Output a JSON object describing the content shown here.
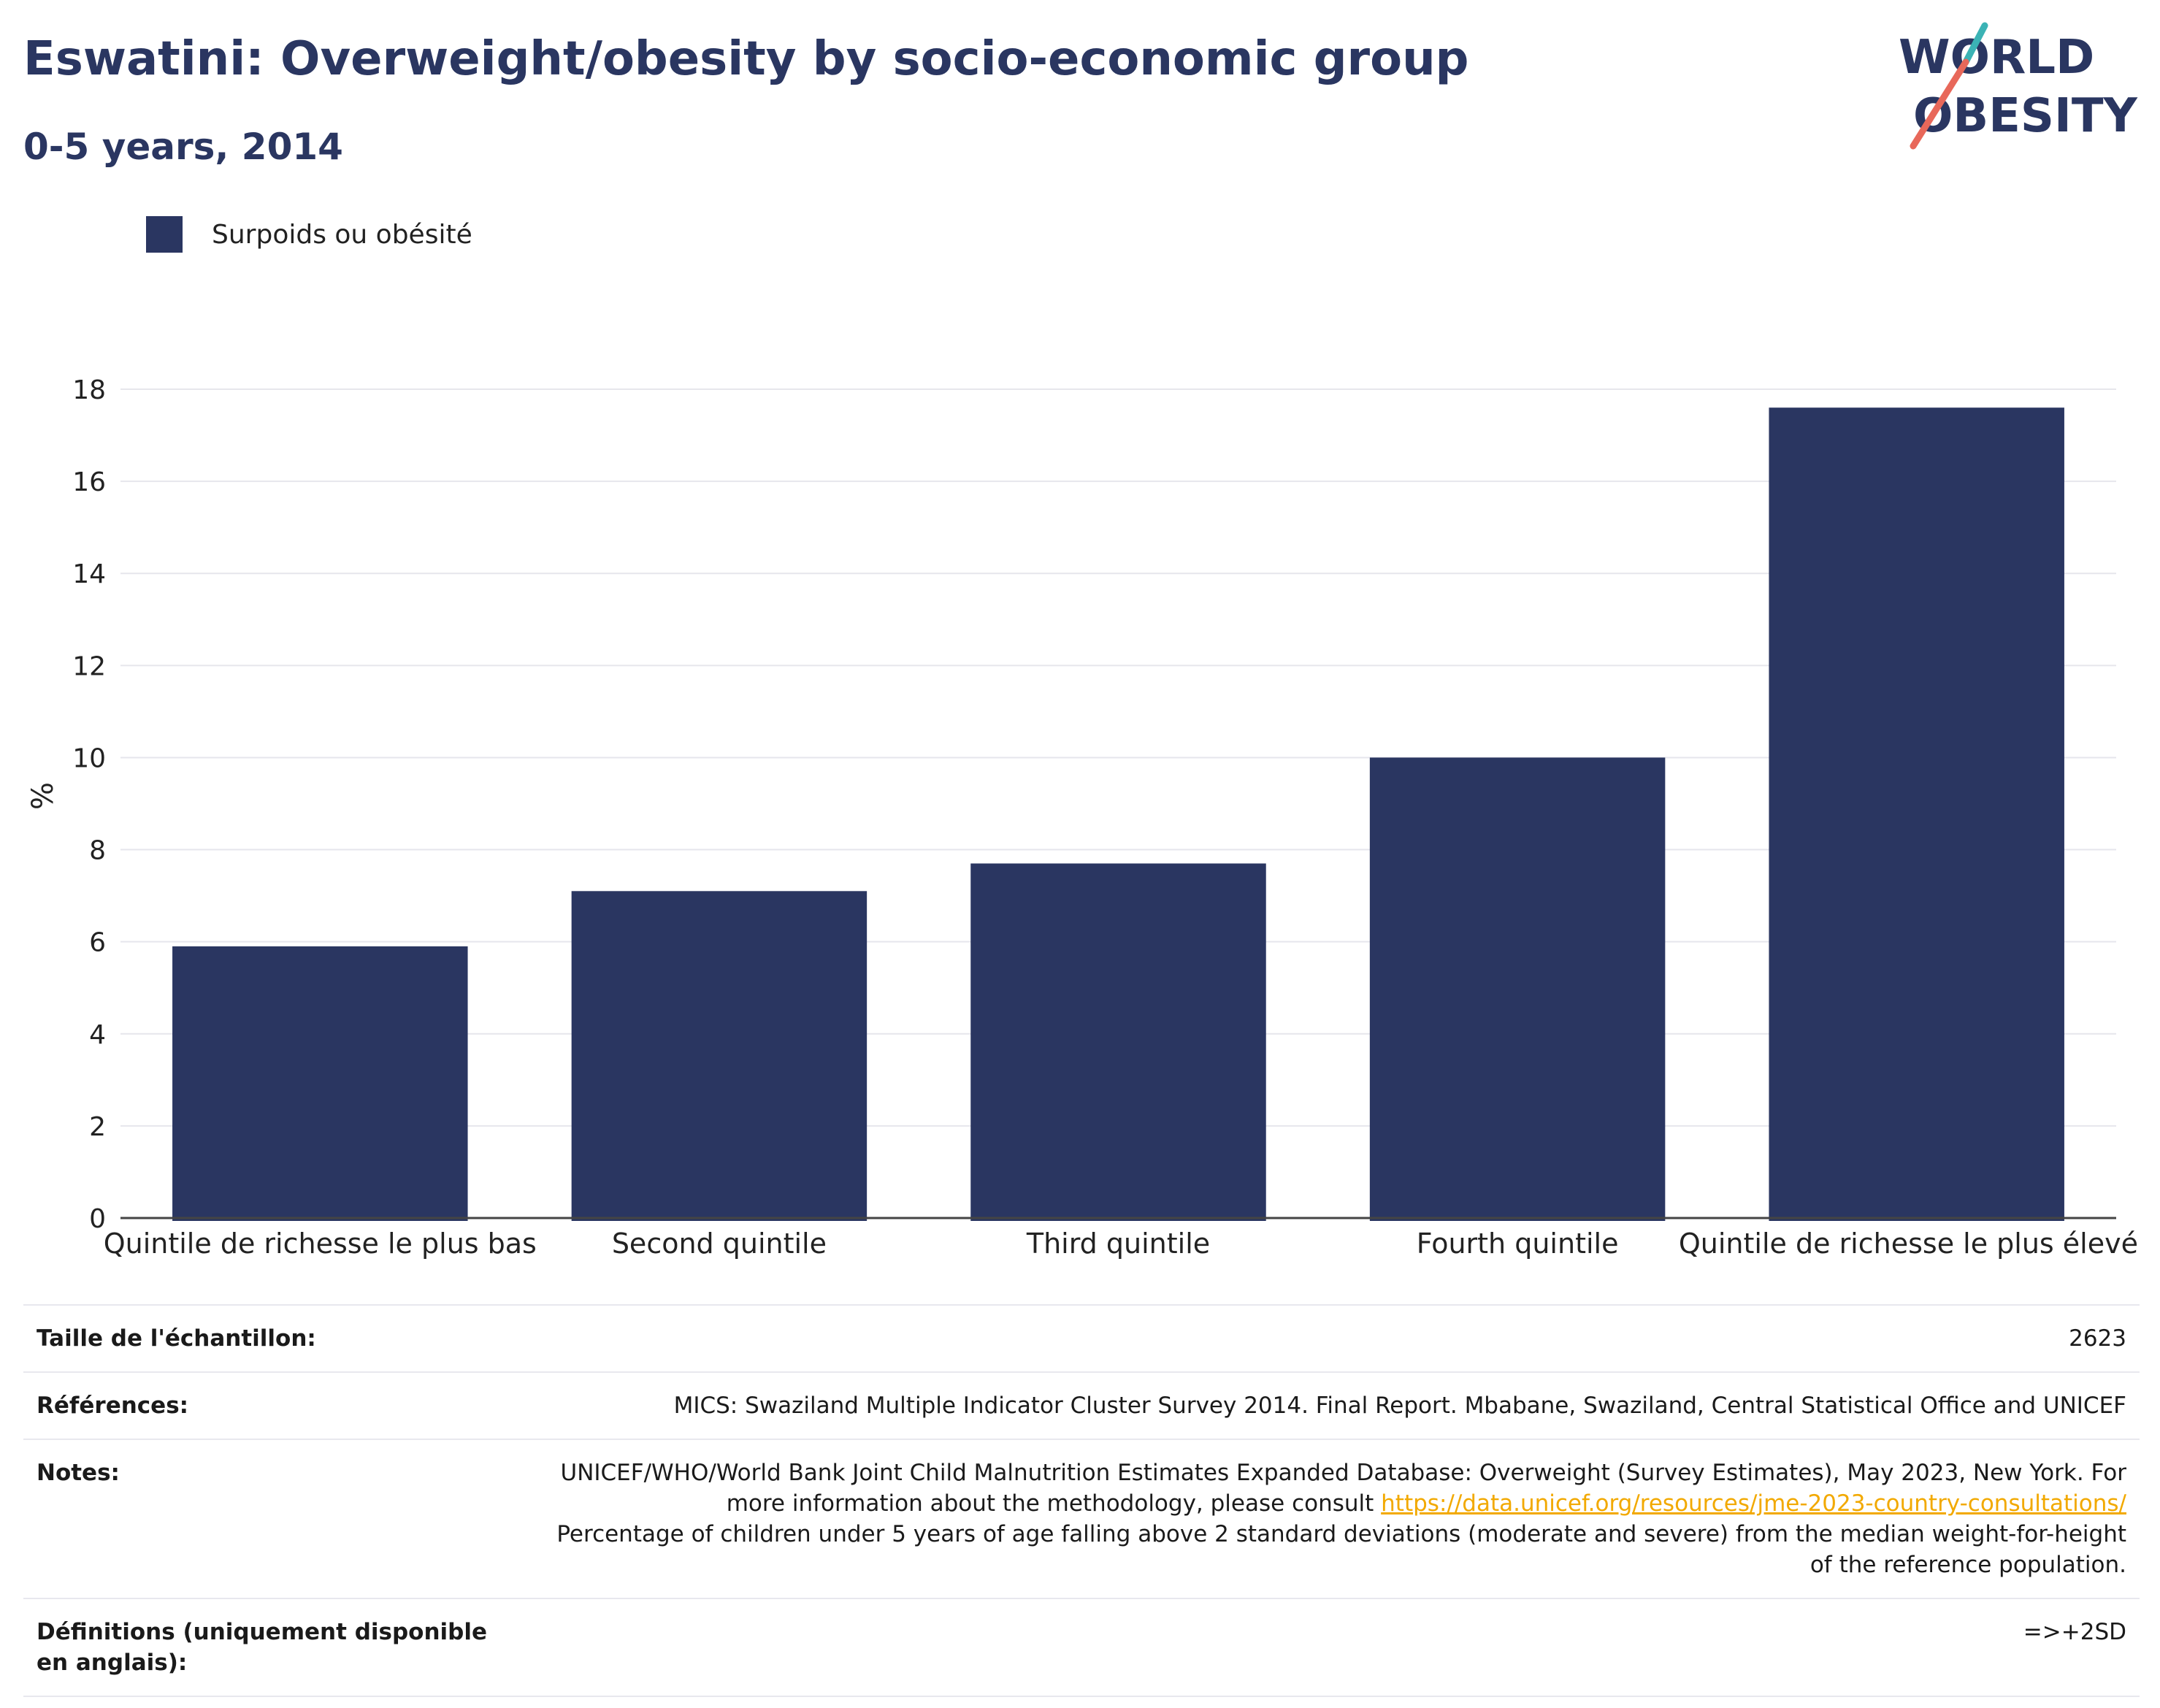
{
  "header": {
    "title": "Eswatini: Overweight/obesity by socio-economic group",
    "subtitle": "0-5 years, 2014"
  },
  "logo": {
    "line1": "WORLD",
    "line2": "OBESITY",
    "accent_teal": "#3bb3b5",
    "accent_coral": "#e8685a"
  },
  "colors": {
    "bar": "#2a3661",
    "title": "#2a3661",
    "grid": "#e6e6ec",
    "axis": "#444444"
  },
  "chart_data": {
    "type": "bar",
    "categories": [
      "Quintile de richesse le plus bas",
      "Second quintile",
      "Third quintile",
      "Fourth quintile",
      "Quintile de richesse le plus élevé"
    ],
    "series": [
      {
        "name": "Surpoids ou obésité",
        "values": [
          5.9,
          7.1,
          7.7,
          10.0,
          17.6
        ]
      }
    ],
    "ylabel": "%",
    "ylim": [
      0,
      18
    ],
    "yticks": [
      0,
      2,
      4,
      6,
      8,
      10,
      12,
      14,
      16,
      18
    ],
    "grid": true,
    "legend": "top-left"
  },
  "info": {
    "sample_size": {
      "label": "Taille de l'échantillon:",
      "value": "2623"
    },
    "references": {
      "label": "Références:",
      "value": "MICS: Swaziland Multiple Indicator Cluster Survey 2014. Final Report. Mbabane, Swaziland, Central Statistical Office and UNICEF"
    },
    "notes": {
      "label": "Notes:",
      "text_before": "UNICEF/WHO/World Bank Joint Child Malnutrition Estimates Expanded Database: Overweight (Survey Estimates), May 2023, New York. For more information about the methodology, please consult",
      "link": "https://data.unicef.org/resources/jme-2023-country-consultations/",
      "text_after": "Percentage of children under 5 years of age falling above 2 standard deviations (moderate and severe) from the median weight-for-height of the reference population."
    },
    "definitions": {
      "label": "Définitions (uniquement disponible en anglais):",
      "value": "=>+2SD"
    }
  }
}
